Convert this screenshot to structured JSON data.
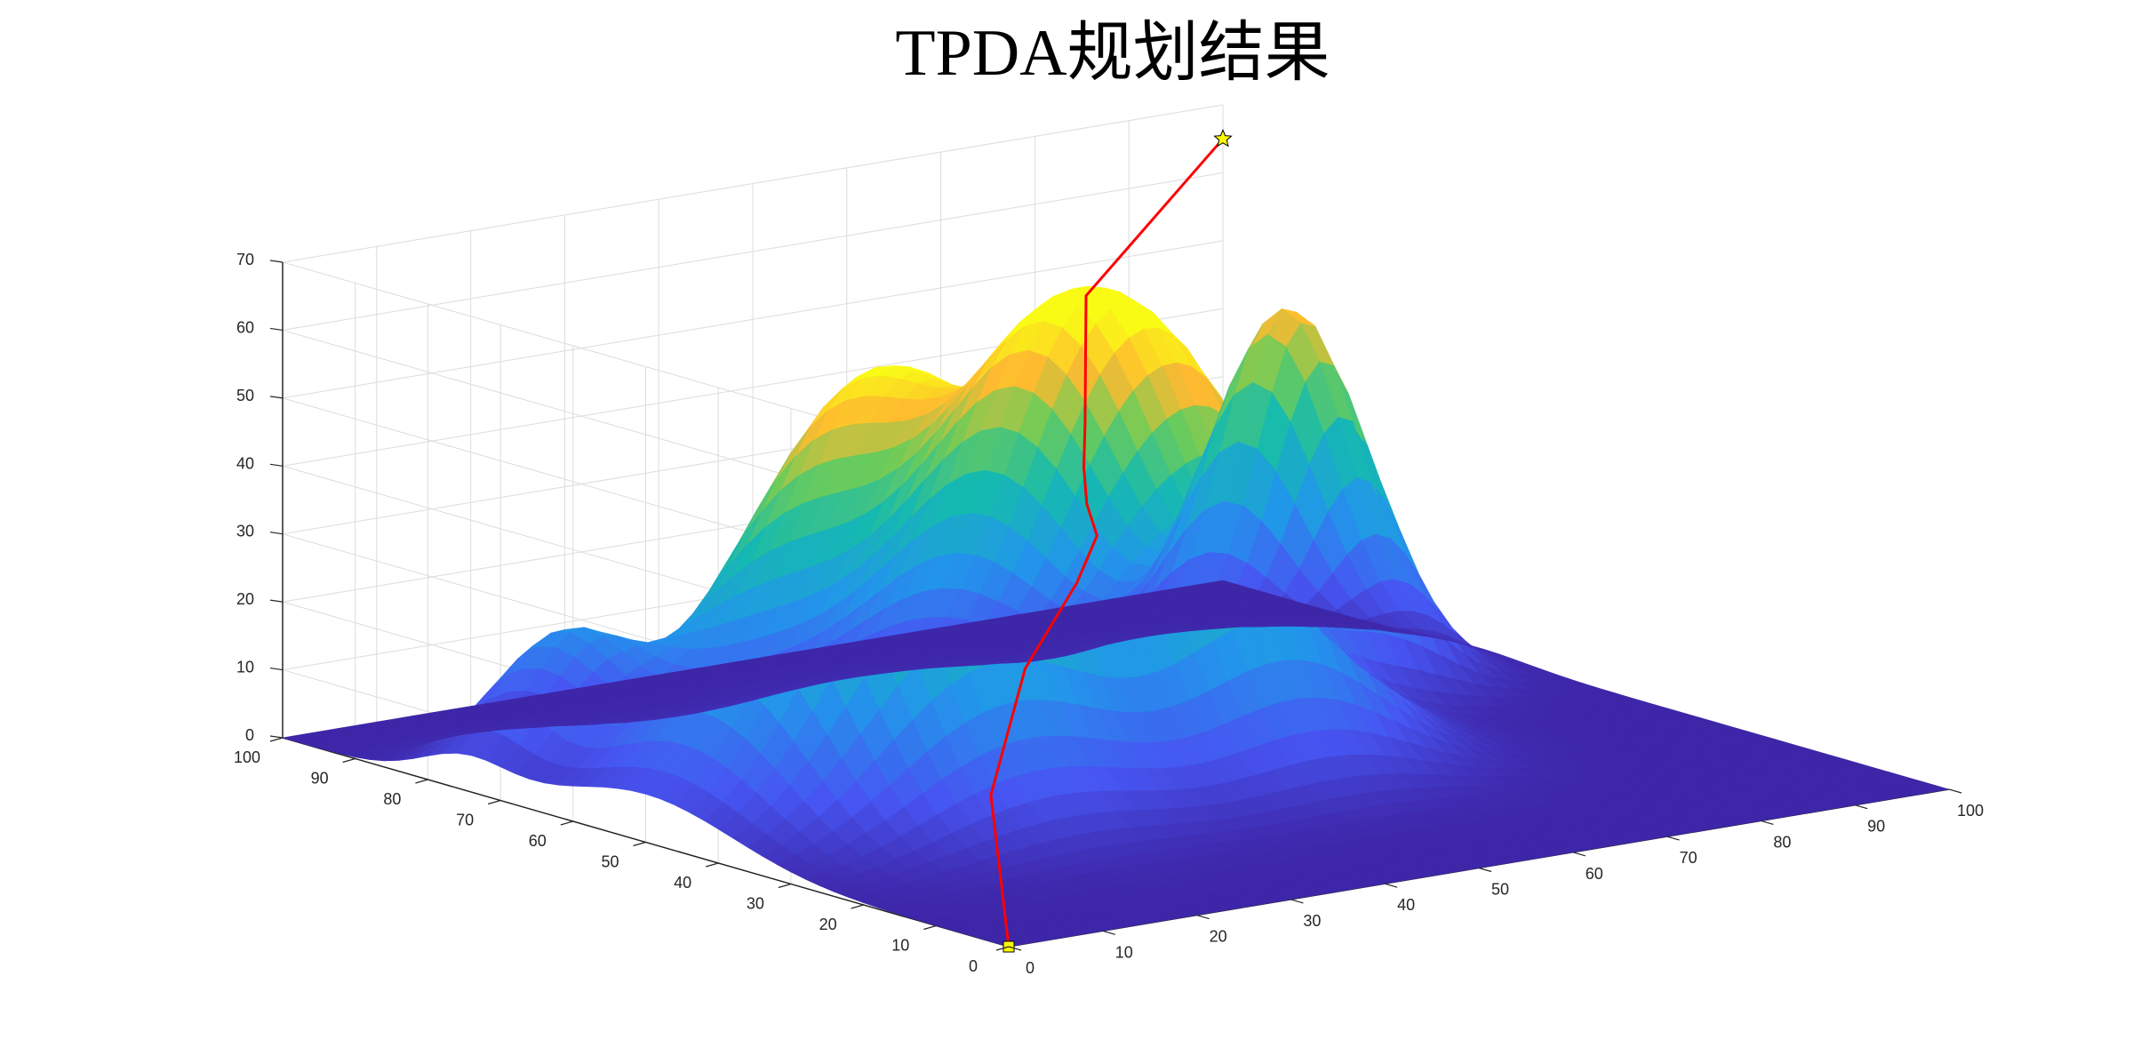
{
  "chart_data": {
    "type": "surface3d",
    "title": "TPDA规划结果",
    "xlabel": "",
    "ylabel": "",
    "zlabel": "",
    "xlim": [
      0,
      100
    ],
    "ylim": [
      0,
      100
    ],
    "zlim": [
      0,
      70
    ],
    "x_ticks": [
      "0",
      "10",
      "20",
      "30",
      "40",
      "50",
      "60",
      "70",
      "80",
      "90",
      "100"
    ],
    "y_ticks": [
      "0",
      "10",
      "20",
      "30",
      "40",
      "50",
      "60",
      "70",
      "80",
      "90",
      "100"
    ],
    "z_ticks": [
      "0",
      "10",
      "20",
      "30",
      "40",
      "50",
      "60",
      "70"
    ],
    "grid": true,
    "colormap": "parula",
    "peaks": [
      {
        "x": 25,
        "y": 50,
        "height": 62,
        "width": 12
      },
      {
        "x": 55,
        "y": 45,
        "height": 42,
        "width": 10
      },
      {
        "x": 50,
        "y": 60,
        "height": 45,
        "width": 10
      },
      {
        "x": 80,
        "y": 65,
        "height": 55,
        "width": 7
      },
      {
        "x": 10,
        "y": 75,
        "height": 18,
        "width": 6
      }
    ],
    "series": [
      {
        "type": "path3d",
        "color": "#ff0000",
        "points": [
          {
            "x": 0,
            "y": 0,
            "z": 0
          },
          {
            "x": 12,
            "y": 18,
            "z": 14
          },
          {
            "x": 28,
            "y": 34,
            "z": 24
          },
          {
            "x": 42,
            "y": 45,
            "z": 30
          },
          {
            "x": 48,
            "y": 50,
            "z": 34
          },
          {
            "x": 50,
            "y": 54,
            "z": 37
          },
          {
            "x": 52,
            "y": 57,
            "z": 41
          },
          {
            "x": 56,
            "y": 62,
            "z": 45
          },
          {
            "x": 70,
            "y": 80,
            "z": 55
          },
          {
            "x": 100,
            "y": 100,
            "z": 65
          }
        ]
      }
    ],
    "start_marker": {
      "x": 0,
      "y": 0,
      "z": 0,
      "shape": "square",
      "color": "#ffff00"
    },
    "goal_marker": {
      "x": 100,
      "y": 100,
      "z": 65,
      "shape": "star",
      "color": "#ffff00"
    }
  }
}
